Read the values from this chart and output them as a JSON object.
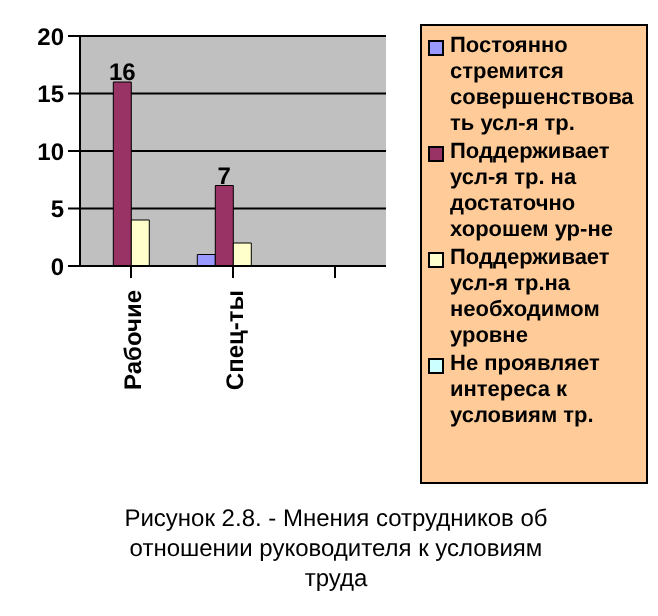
{
  "chart_data": {
    "type": "bar",
    "title": "Рисунок 2.8. - Мнения сотрудников об отношении руководителя к условиям труда",
    "categories": [
      "Рабочие",
      "Спец-ты",
      null
    ],
    "series": [
      {
        "name": "Постоянно стремится совершенствовать усл-я тр.",
        "color": "#9999ff",
        "values": [
          0,
          1,
          null
        ]
      },
      {
        "name": "Поддерживает усл-я тр. на достаточно хорошем ур-не",
        "color": "#993366",
        "values": [
          16,
          7,
          null
        ],
        "value_labels": [
          "16",
          "7",
          null
        ]
      },
      {
        "name": "Поддерживает усл-я тр.на необходимом уровне",
        "color": "#ffffcc",
        "values": [
          4,
          2,
          null
        ]
      },
      {
        "name": "Не проявляет интереса к условиям тр.",
        "color": "#ccffff",
        "values": [
          0,
          0,
          null
        ]
      }
    ],
    "ylim": [
      0,
      20
    ],
    "yticks": [
      0,
      5,
      10,
      15,
      20
    ],
    "grid": "y",
    "legend": "right"
  }
}
